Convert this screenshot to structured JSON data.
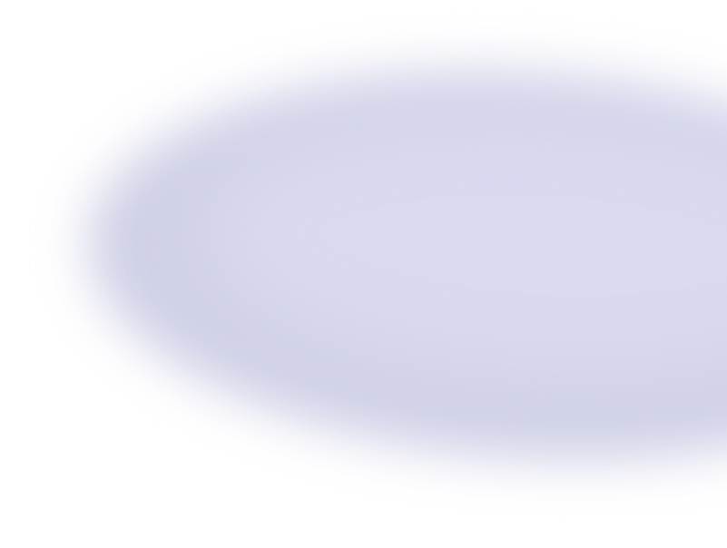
{
  "colors": {
    "background": "#ffffff",
    "blob_edge": "#cfd0e6",
    "blob_center": "#d9d9f0"
  }
}
